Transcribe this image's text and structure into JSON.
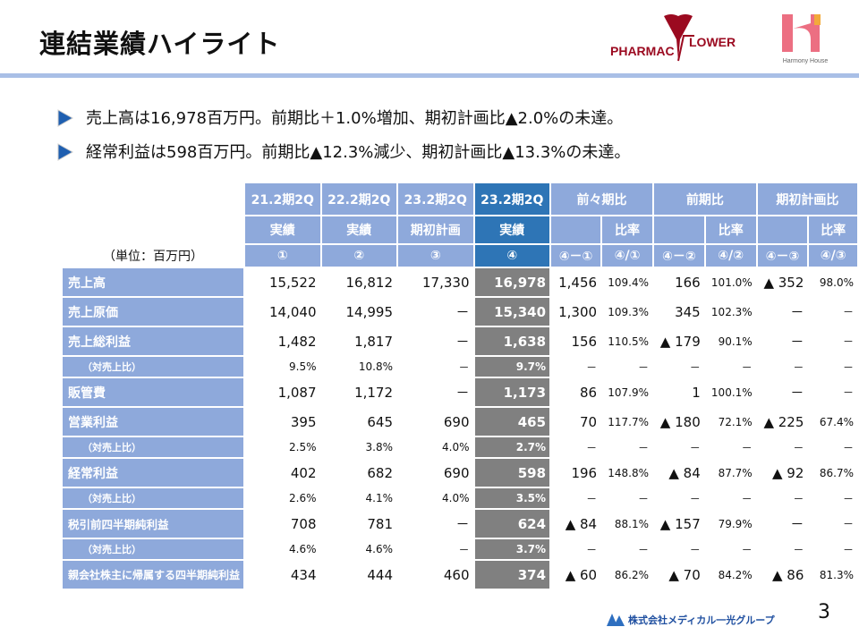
{
  "header": {
    "title": "連結業績ハイライト",
    "logos": {
      "left": "PHARMAC FLOWER",
      "right": "Harmony House"
    }
  },
  "bullets": [
    "売上高は16,978百万円。前期比＋1.0%増加、期初計画比▲2.0%の未達。",
    "経常利益は598百万円。前期比▲12.3%減少、期初計画比▲13.3%の未達。"
  ],
  "table": {
    "unit": "（単位：百万円）",
    "col_headers": [
      {
        "period": "21.2期2Q",
        "type": "実績",
        "num": "①"
      },
      {
        "period": "22.2期2Q",
        "type": "実績",
        "num": "②"
      },
      {
        "period": "23.2期2Q",
        "type": "期初計画",
        "num": "③"
      },
      {
        "period": "23.2期2Q",
        "type": "実績",
        "num": "④"
      }
    ],
    "compare_groups": [
      {
        "label": "前々期比",
        "ratio": "比率",
        "diff_num": "④－①",
        "ratio_num": "④/①"
      },
      {
        "label": "前期比",
        "ratio": "比率",
        "diff_num": "④－②",
        "ratio_num": "④/②"
      },
      {
        "label": "期初計画比",
        "ratio": "比率",
        "diff_num": "④－③",
        "ratio_num": "④/③"
      }
    ],
    "rows": [
      {
        "label": "売上高",
        "kind": "main",
        "v": [
          "15,522",
          "16,812",
          "17,330",
          "16,978",
          "1,456",
          "109.4%",
          "166",
          "101.0%",
          "▲ 352",
          "98.0%"
        ]
      },
      {
        "label": "売上原価",
        "kind": "main",
        "v": [
          "14,040",
          "14,995",
          "－",
          "15,340",
          "1,300",
          "109.3%",
          "345",
          "102.3%",
          "－",
          "－"
        ]
      },
      {
        "label": "売上総利益",
        "kind": "main",
        "v": [
          "1,482",
          "1,817",
          "－",
          "1,638",
          "156",
          "110.5%",
          "▲ 179",
          "90.1%",
          "－",
          "－"
        ]
      },
      {
        "label": "（対売上比）",
        "kind": "sub",
        "v": [
          "9.5%",
          "10.8%",
          "－",
          "9.7%",
          "－",
          "－",
          "－",
          "－",
          "－",
          "－"
        ]
      },
      {
        "label": "販管費",
        "kind": "main",
        "v": [
          "1,087",
          "1,172",
          "－",
          "1,173",
          "86",
          "107.9%",
          "1",
          "100.1%",
          "－",
          "－"
        ]
      },
      {
        "label": "営業利益",
        "kind": "main",
        "v": [
          "395",
          "645",
          "690",
          "465",
          "70",
          "117.7%",
          "▲ 180",
          "72.1%",
          "▲ 225",
          "67.4%"
        ]
      },
      {
        "label": "（対売上比）",
        "kind": "sub",
        "v": [
          "2.5%",
          "3.8%",
          "4.0%",
          "2.7%",
          "－",
          "－",
          "－",
          "－",
          "－",
          "－"
        ]
      },
      {
        "label": "経常利益",
        "kind": "main",
        "v": [
          "402",
          "682",
          "690",
          "598",
          "196",
          "148.8%",
          "▲ 84",
          "87.7%",
          "▲ 92",
          "86.7%"
        ]
      },
      {
        "label": "（対売上比）",
        "kind": "sub",
        "v": [
          "2.6%",
          "4.1%",
          "4.0%",
          "3.5%",
          "－",
          "－",
          "－",
          "－",
          "－",
          "－"
        ]
      },
      {
        "label": "税引前四半期純利益",
        "kind": "main",
        "v": [
          "708",
          "781",
          "－",
          "624",
          "▲ 84",
          "88.1%",
          "▲ 157",
          "79.9%",
          "－",
          "－"
        ]
      },
      {
        "label": "（対売上比）",
        "kind": "sub",
        "v": [
          "4.6%",
          "4.6%",
          "－",
          "3.7%",
          "－",
          "－",
          "－",
          "－",
          "－",
          "－"
        ]
      },
      {
        "label": "親会社株主に帰属する四半期純利益",
        "kind": "main",
        "v": [
          "434",
          "444",
          "460",
          "374",
          "▲ 60",
          "86.2%",
          "▲ 70",
          "84.2%",
          "▲ 86",
          "81.3%"
        ]
      }
    ]
  },
  "footer": {
    "company": "株式会社メディカル一光グループ",
    "page": "3"
  },
  "colors": {
    "header": "#8ea9db",
    "highlight_header": "#2e75b6",
    "highlight_cell": "#808080",
    "rule": "#a9bfe6",
    "logo_red": "#9b0a20",
    "logo_pink": "#ec6f82",
    "logo_orange": "#f2a93b"
  }
}
